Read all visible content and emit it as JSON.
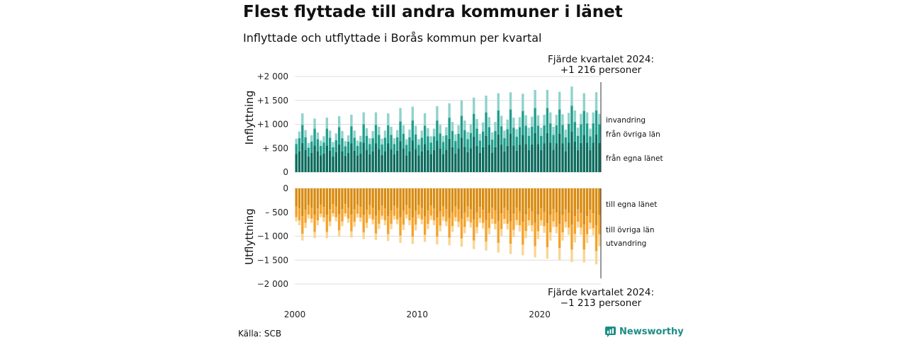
{
  "title": "Flest flyttade till andra kommuner i länet",
  "subtitle": "Inflyttade och utflyttade i Borås kommun per kvartal",
  "source": "Källa: SCB",
  "brand": "Newsworthy",
  "colors": {
    "in_own": "#0b6b5d",
    "in_other": "#1f9e8c",
    "in_imm": "#8fd2cb",
    "out_own": "#d98b10",
    "out_other": "#f5a22b",
    "out_emi": "#f9d592",
    "grid": "#dddddd",
    "brand": "#1d8d85"
  },
  "chart_data": [
    {
      "type": "bar",
      "stacked": true,
      "ylabel": "Inflyttning",
      "ylim": [
        0,
        2000
      ],
      "yticks": [
        0,
        500,
        1000,
        1500,
        2000
      ],
      "ytick_labels": [
        "0",
        "+ 500",
        "+1 000",
        "+1 500",
        "+2 000"
      ],
      "x_start": 2000,
      "x_end": 2024,
      "x_tick_labels": [
        "2000",
        "2010",
        "2020"
      ],
      "annotation": [
        "Fjärde kvartalet 2024:",
        "+1 216 personer"
      ],
      "series": [
        {
          "name": "från egna länet",
          "values": [
            380,
            440,
            610,
            470,
            330,
            400,
            560,
            440,
            350,
            390,
            560,
            450,
            330,
            420,
            580,
            440,
            340,
            400,
            600,
            450,
            350,
            390,
            620,
            470,
            370,
            440,
            600,
            480,
            360,
            440,
            600,
            480,
            370,
            450,
            650,
            490,
            350,
            440,
            660,
            480,
            350,
            440,
            590,
            460,
            380,
            460,
            660,
            490,
            380,
            470,
            700,
            520,
            390,
            490,
            720,
            530,
            420,
            500,
            740,
            550,
            400,
            520,
            760,
            570,
            410,
            520,
            790,
            580,
            430,
            550,
            800,
            560,
            450,
            570,
            780,
            590,
            460,
            580,
            820,
            590,
            460,
            600,
            820,
            620,
            470,
            600,
            800,
            600,
            440,
            620,
            850,
            640,
            460,
            610,
            780,
            620,
            460,
            620,
            790,
            610
          ]
        },
        {
          "name": "från övriga län",
          "values": [
            210,
            270,
            380,
            260,
            180,
            240,
            350,
            250,
            200,
            230,
            350,
            270,
            190,
            250,
            360,
            270,
            200,
            240,
            360,
            270,
            200,
            240,
            380,
            290,
            220,
            270,
            390,
            300,
            220,
            280,
            380,
            300,
            220,
            280,
            410,
            310,
            220,
            290,
            420,
            310,
            220,
            280,
            380,
            290,
            240,
            290,
            420,
            320,
            250,
            300,
            440,
            340,
            260,
            310,
            460,
            350,
            270,
            320,
            480,
            360,
            260,
            330,
            490,
            370,
            270,
            340,
            500,
            380,
            280,
            350,
            510,
            370,
            290,
            370,
            500,
            380,
            300,
            370,
            520,
            380,
            300,
            380,
            520,
            400,
            310,
            380,
            510,
            390,
            290,
            390,
            540,
            410,
            300,
            390,
            500,
            400,
            290,
            400,
            500,
            390
          ]
        },
        {
          "name": "invandring",
          "values": [
            110,
            140,
            240,
            150,
            100,
            130,
            210,
            140,
            110,
            130,
            230,
            150,
            110,
            140,
            230,
            150,
            110,
            130,
            240,
            150,
            110,
            130,
            250,
            160,
            120,
            150,
            260,
            170,
            120,
            150,
            250,
            170,
            120,
            150,
            280,
            180,
            120,
            160,
            290,
            180,
            120,
            150,
            260,
            170,
            130,
            160,
            300,
            180,
            130,
            170,
            300,
            190,
            140,
            180,
            320,
            200,
            150,
            180,
            340,
            200,
            140,
            190,
            350,
            210,
            150,
            190,
            360,
            220,
            160,
            200,
            360,
            210,
            160,
            210,
            360,
            220,
            170,
            210,
            380,
            220,
            170,
            220,
            380,
            230,
            170,
            220,
            370,
            220,
            160,
            230,
            400,
            240,
            170,
            220,
            370,
            230,
            160,
            230,
            380,
            220
          ]
        }
      ]
    },
    {
      "type": "bar",
      "stacked": true,
      "ylabel": "Utflyttning",
      "ylim": [
        -2000,
        0
      ],
      "yticks": [
        0,
        -500,
        -1000,
        -1500,
        -2000
      ],
      "ytick_labels": [
        "0",
        "– 500",
        "−1 000",
        "−1 500",
        "−2 000"
      ],
      "annotation": [
        "Fjärde kvartalet 2024:",
        "−1 213 personer"
      ],
      "series": [
        {
          "name": "till egna länet",
          "values": [
            -380,
            -420,
            -580,
            -450,
            -350,
            -400,
            -560,
            -420,
            -340,
            -390,
            -560,
            -430,
            -330,
            -380,
            -540,
            -430,
            -330,
            -400,
            -550,
            -440,
            -340,
            -390,
            -560,
            -450,
            -350,
            -410,
            -570,
            -460,
            -360,
            -420,
            -580,
            -460,
            -360,
            -410,
            -600,
            -470,
            -350,
            -420,
            -610,
            -470,
            -350,
            -410,
            -590,
            -460,
            -360,
            -420,
            -610,
            -480,
            -370,
            -430,
            -620,
            -490,
            -380,
            -440,
            -630,
            -500,
            -380,
            -440,
            -650,
            -500,
            -390,
            -450,
            -660,
            -510,
            -400,
            -460,
            -680,
            -520,
            -400,
            -460,
            -690,
            -530,
            -410,
            -480,
            -700,
            -540,
            -420,
            -480,
            -720,
            -550,
            -420,
            -490,
            -730,
            -560,
            -430,
            -500,
            -740,
            -560,
            -440,
            -510,
            -760,
            -580,
            -440,
            -510,
            -760,
            -580,
            -450,
            -520,
            -770,
            -560
          ]
        },
        {
          "name": "till övriga län",
          "values": [
            -220,
            -250,
            -370,
            -270,
            -200,
            -230,
            -350,
            -250,
            -190,
            -220,
            -350,
            -260,
            -190,
            -220,
            -340,
            -260,
            -190,
            -230,
            -350,
            -260,
            -190,
            -220,
            -360,
            -270,
            -200,
            -240,
            -370,
            -280,
            -210,
            -250,
            -380,
            -280,
            -210,
            -240,
            -390,
            -290,
            -200,
            -250,
            -400,
            -290,
            -200,
            -240,
            -380,
            -280,
            -210,
            -250,
            -400,
            -300,
            -220,
            -260,
            -410,
            -300,
            -220,
            -260,
            -420,
            -310,
            -220,
            -270,
            -440,
            -310,
            -230,
            -270,
            -450,
            -320,
            -240,
            -280,
            -460,
            -330,
            -240,
            -280,
            -470,
            -340,
            -250,
            -290,
            -480,
            -350,
            -250,
            -290,
            -490,
            -350,
            -250,
            -300,
            -500,
            -360,
            -260,
            -300,
            -510,
            -360,
            -260,
            -310,
            -520,
            -370,
            -260,
            -310,
            -520,
            -380,
            -270,
            -310,
            -540,
            -400
          ]
        },
        {
          "name": "utvandring",
          "values": [
            -90,
            -100,
            -140,
            -110,
            -80,
            -90,
            -130,
            -100,
            -70,
            -90,
            -130,
            -100,
            -70,
            -90,
            -130,
            -100,
            -70,
            -90,
            -130,
            -100,
            -80,
            -90,
            -140,
            -110,
            -80,
            -100,
            -140,
            -110,
            -80,
            -100,
            -140,
            -110,
            -80,
            -100,
            -150,
            -110,
            -80,
            -100,
            -150,
            -120,
            -80,
            -100,
            -150,
            -110,
            -90,
            -100,
            -160,
            -120,
            -90,
            -100,
            -160,
            -120,
            -90,
            -110,
            -170,
            -130,
            -90,
            -110,
            -180,
            -130,
            -100,
            -120,
            -190,
            -130,
            -100,
            -120,
            -200,
            -140,
            -100,
            -120,
            -210,
            -150,
            -110,
            -130,
            -220,
            -150,
            -110,
            -130,
            -230,
            -160,
            -110,
            -140,
            -240,
            -170,
            -120,
            -140,
            -250,
            -170,
            -120,
            -150,
            -260,
            -180,
            -120,
            -150,
            -270,
            -180,
            -130,
            -150,
            -280,
            -250
          ]
        }
      ]
    }
  ]
}
